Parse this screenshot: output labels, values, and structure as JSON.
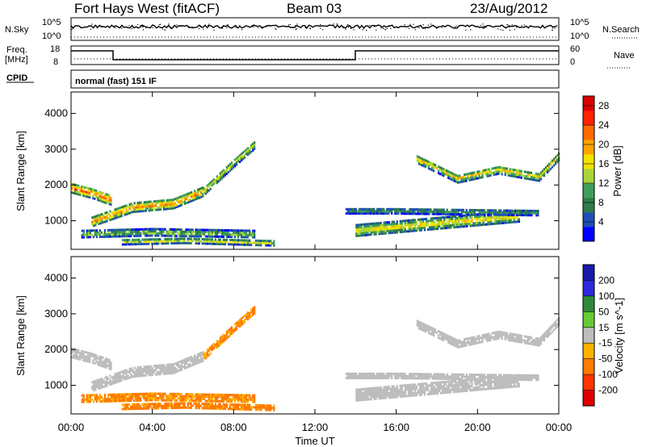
{
  "header": {
    "station": "Fort Hays West (fitACF)",
    "beam": "Beam 03",
    "date": "23/Aug/2012"
  },
  "panels": {
    "nsky_label": "N.Sky",
    "nsky_ticks": [
      "10^5",
      "10^0"
    ],
    "nsearch_label": "N.Search",
    "nsearch_ticks": [
      "10^5",
      "10^0"
    ],
    "freq_label_line1": "Freq.",
    "freq_label_line2": "[MHz]",
    "freq_ticks": [
      "18",
      "8"
    ],
    "nave_label": "Nave",
    "nave_ticks": [
      "60",
      "0"
    ],
    "cpid_label": "CPID",
    "cpid_text": "normal (fast) 151 IF"
  },
  "colors": {
    "power_scale": [
      "#0000ff",
      "#1f4fb5",
      "#2e7d4a",
      "#3f9e5a",
      "#a8d63a",
      "#f2e200",
      "#ffa500",
      "#ff6a00",
      "#ff2200",
      "#dd0000"
    ],
    "velocity_scale": [
      "#1a1aa8",
      "#2a2adc",
      "#2e8a3a",
      "#66cc33",
      "#bdbdbd",
      "#ffb100",
      "#ff7a00",
      "#ff3300",
      "#e00000"
    ],
    "ground_scatter": "#bdbdbd"
  },
  "chart_data": [
    {
      "type": "heatmap",
      "title": "Power",
      "xlabel": "Time UT",
      "ylabel": "Slant Range [km]",
      "x_ticks": [
        "00:00",
        "04:00",
        "08:00",
        "12:00",
        "16:00",
        "20:00",
        "00:00"
      ],
      "xlim_hours": [
        0,
        24
      ],
      "y_ticks": [
        1000,
        2000,
        3000,
        4000
      ],
      "ylim": [
        200,
        4600
      ],
      "colorbar_label": "Power [dB]",
      "colorbar_ticks": [
        4,
        8,
        12,
        16,
        20,
        24,
        28
      ],
      "colorbar_range": [
        0,
        30
      ],
      "echo_bands": [
        {
          "t": [
            0.0,
            1.0,
            2.0
          ],
          "r": [
            1900,
            1750,
            1550
          ],
          "w": 280,
          "p": 24
        },
        {
          "t": [
            1.0,
            3.0,
            5.0,
            6.5
          ],
          "r": [
            950,
            1350,
            1450,
            1800
          ],
          "w": 260,
          "p": 22
        },
        {
          "t": [
            6.5,
            8.0,
            9.0
          ],
          "r": [
            1800,
            2600,
            3100
          ],
          "w": 220,
          "p": 16
        },
        {
          "t": [
            0.5,
            4.0,
            9.0
          ],
          "r": [
            600,
            650,
            600
          ],
          "w": 180,
          "p": 14
        },
        {
          "t": [
            2.5,
            5.5,
            10.0
          ],
          "r": [
            380,
            420,
            350
          ],
          "w": 140,
          "p": 16
        },
        {
          "t": [
            14.0,
            18.0,
            22.0
          ],
          "r": [
            700,
            900,
            1100
          ],
          "w": 300,
          "p": 18
        },
        {
          "t": [
            17.0,
            19.0,
            21.0,
            23.0,
            24.0
          ],
          "r": [
            2700,
            2150,
            2400,
            2200,
            2800
          ],
          "w": 220,
          "p": 18
        },
        {
          "t": [
            13.5,
            16.0,
            23.0
          ],
          "r": [
            1250,
            1250,
            1200
          ],
          "w": 150,
          "p": 10
        }
      ]
    },
    {
      "type": "heatmap",
      "title": "Velocity",
      "xlabel": "Time UT",
      "ylabel": "Slant Range [km]",
      "x_ticks": [
        "00:00",
        "04:00",
        "08:00",
        "12:00",
        "16:00",
        "20:00",
        "00:00"
      ],
      "xlim_hours": [
        0,
        24
      ],
      "y_ticks": [
        1000,
        2000,
        3000,
        4000
      ],
      "ylim": [
        200,
        4600
      ],
      "colorbar_label": "Velocity [m s^-1]",
      "colorbar_ticks": [
        200,
        100,
        50,
        15,
        -15,
        -50,
        -100,
        -200
      ],
      "colorbar_range": [
        -250,
        250
      ],
      "echo_bands": [
        {
          "t": [
            0.0,
            1.0,
            2.0
          ],
          "r": [
            1900,
            1750,
            1550
          ],
          "w": 280,
          "v": 0
        },
        {
          "t": [
            1.0,
            3.0,
            5.0,
            6.5
          ],
          "r": [
            950,
            1350,
            1450,
            1800
          ],
          "w": 260,
          "v": 0
        },
        {
          "t": [
            6.5,
            8.0,
            9.0
          ],
          "r": [
            1800,
            2600,
            3100
          ],
          "w": 220,
          "v": -60
        },
        {
          "t": [
            0.5,
            4.0,
            9.0
          ],
          "r": [
            600,
            650,
            600
          ],
          "w": 180,
          "v": -60
        },
        {
          "t": [
            2.5,
            5.5,
            10.0
          ],
          "r": [
            380,
            420,
            350
          ],
          "w": 140,
          "v": -70
        },
        {
          "t": [
            14.0,
            18.0,
            22.0
          ],
          "r": [
            700,
            900,
            1100
          ],
          "w": 300,
          "v": 0
        },
        {
          "t": [
            17.0,
            19.0,
            21.0,
            23.0,
            24.0
          ],
          "r": [
            2700,
            2150,
            2400,
            2200,
            2800
          ],
          "w": 220,
          "v": 0
        },
        {
          "t": [
            13.5,
            16.0,
            23.0
          ],
          "r": [
            1250,
            1250,
            1200
          ],
          "w": 150,
          "v": 0
        }
      ]
    }
  ]
}
